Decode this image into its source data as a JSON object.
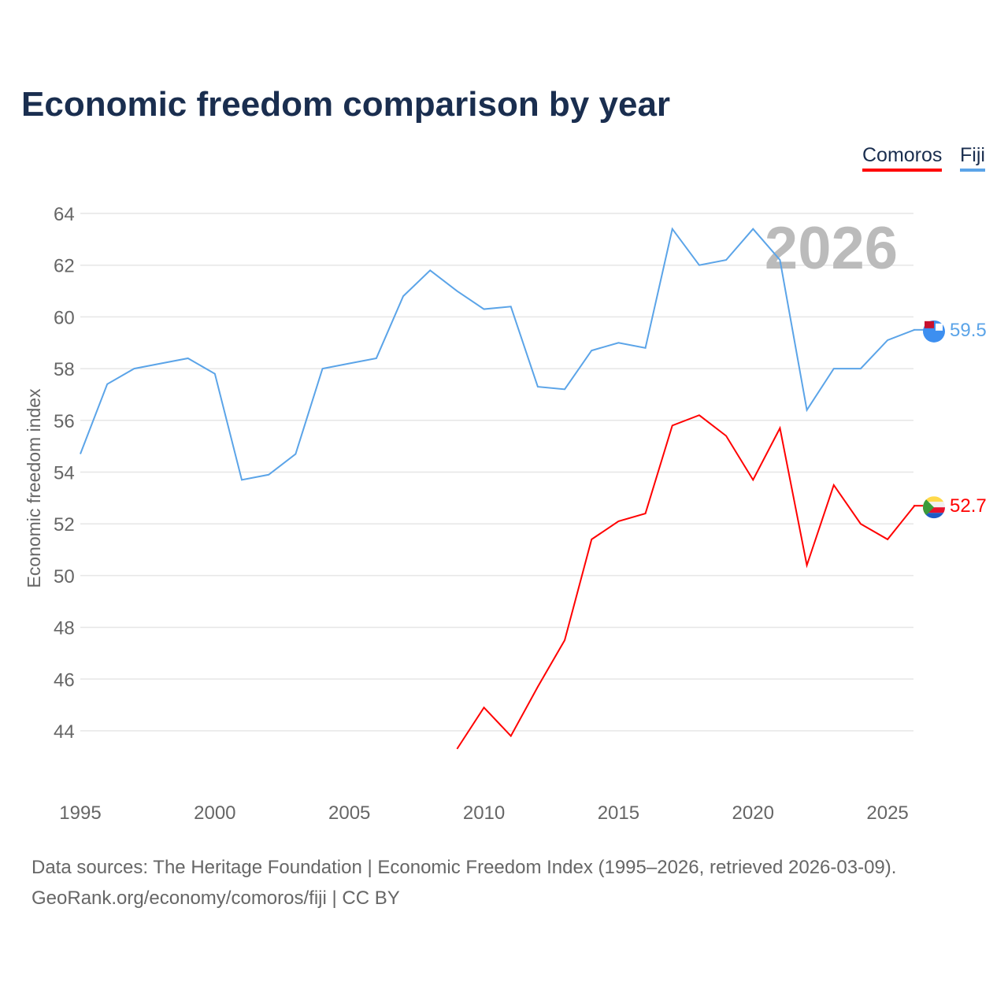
{
  "title": "Economic freedom comparison by year",
  "footer": {
    "line1": "Data sources: The Heritage Foundation | Economic Freedom Index (1995–2026, retrieved 2026-03-09).",
    "line2": "GeoRank.org/economy/comoros/fiji | CC BY"
  },
  "chart_data": {
    "type": "line",
    "title": "Economic freedom comparison by year",
    "xlabel": "",
    "ylabel": "Economic freedom index",
    "year_watermark": "2026",
    "xlim": [
      1995,
      2026
    ],
    "ylim": [
      44,
      64
    ],
    "xticks": [
      "1995",
      "2000",
      "2005",
      "2010",
      "2015",
      "2020",
      "2025"
    ],
    "yticks": [
      "44",
      "46",
      "48",
      "50",
      "52",
      "54",
      "56",
      "58",
      "60",
      "62",
      "64"
    ],
    "legend_position": "top-right",
    "series": [
      {
        "name": "Comoros",
        "color": "#ff0000",
        "end_label": "52.7",
        "flag": "comoros-flag-icon",
        "x": [
          2009,
          2010,
          2011,
          2012,
          2013,
          2014,
          2015,
          2016,
          2017,
          2018,
          2019,
          2020,
          2021,
          2022,
          2023,
          2024,
          2025,
          2026
        ],
        "values": [
          43.3,
          44.9,
          43.8,
          45.7,
          47.5,
          51.4,
          52.1,
          52.4,
          55.8,
          56.2,
          55.4,
          53.7,
          55.7,
          50.4,
          53.5,
          52.0,
          51.4,
          52.7
        ]
      },
      {
        "name": "Fiji",
        "color": "#5ba4e8",
        "end_label": "59.5",
        "flag": "fiji-flag-icon",
        "x": [
          1995,
          1996,
          1997,
          1998,
          1999,
          2000,
          2001,
          2002,
          2003,
          2004,
          2005,
          2006,
          2007,
          2008,
          2009,
          2010,
          2011,
          2012,
          2013,
          2014,
          2015,
          2016,
          2017,
          2018,
          2019,
          2020,
          2021,
          2022,
          2023,
          2024,
          2025,
          2026
        ],
        "values": [
          54.7,
          57.4,
          58.0,
          58.2,
          58.4,
          57.8,
          53.7,
          53.9,
          54.7,
          58.0,
          58.2,
          58.4,
          60.8,
          61.8,
          61.0,
          60.3,
          60.4,
          57.3,
          57.2,
          58.7,
          59.0,
          58.8,
          63.4,
          62.0,
          62.2,
          63.4,
          62.2,
          56.4,
          58.0,
          58.0,
          59.1,
          59.5
        ]
      }
    ]
  }
}
